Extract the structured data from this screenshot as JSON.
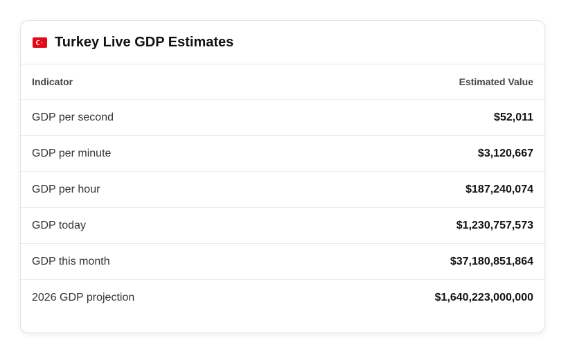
{
  "header": {
    "title": "Turkey Live GDP Estimates"
  },
  "table": {
    "columns": [
      "Indicator",
      "Estimated Value"
    ],
    "rows": [
      [
        "GDP per second",
        "$52,011"
      ],
      [
        "GDP per minute",
        "$3,120,667"
      ],
      [
        "GDP per hour",
        "$187,240,074"
      ],
      [
        "GDP today",
        "$1,230,757,573"
      ],
      [
        "GDP this month",
        "$37,180,851,864"
      ],
      [
        "2026 GDP projection",
        "$1,640,223,000,000"
      ]
    ]
  }
}
